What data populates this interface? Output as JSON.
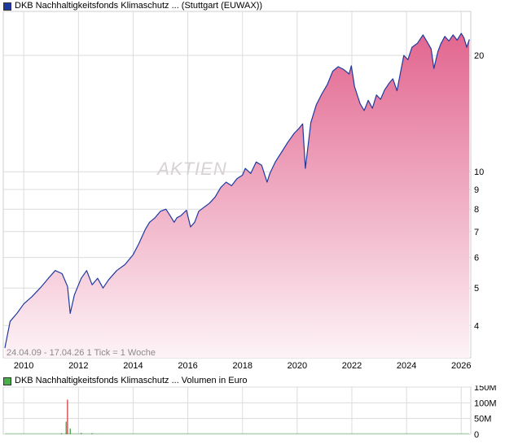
{
  "colors": {
    "price_line": "#1f3a9e",
    "area_top": "#e2668f",
    "area_bottom": "#fdf3f7",
    "grid": "#dcdcdc",
    "price_swatch": "#1f3a9e",
    "volume_swatch": "#48b048",
    "volume_bars": "#3a9a3a",
    "volume_spike": "#d03030",
    "watermark": "#d8d2d2"
  },
  "watermark": "AKTIEN",
  "chart_data": [
    {
      "type": "area",
      "legend": "DKB Nachhaltigkeitsfonds Klimaschutz ... (Stuttgart (EUWAX))",
      "info": "24.04.09 - 17.04.26   1 Tick = 1 Woche",
      "y_scale": "log",
      "ylim": [
        3.3,
        26
      ],
      "y_ticks": [
        4,
        5,
        6,
        7,
        8,
        9,
        10,
        20
      ],
      "x_ticks": [
        2010,
        2012,
        2014,
        2016,
        2018,
        2020,
        2022,
        2024,
        2026
      ],
      "xlim": [
        2009.25,
        2026.35
      ],
      "grid": true,
      "x": [
        2009.31,
        2009.5,
        2009.75,
        2010.0,
        2010.3,
        2010.6,
        2010.9,
        2011.15,
        2011.4,
        2011.6,
        2011.7,
        2011.85,
        2012.1,
        2012.3,
        2012.5,
        2012.7,
        2012.9,
        2013.1,
        2013.4,
        2013.7,
        2014.0,
        2014.2,
        2014.45,
        2014.6,
        2014.8,
        2015.0,
        2015.2,
        2015.35,
        2015.5,
        2015.6,
        2015.75,
        2015.95,
        2016.1,
        2016.25,
        2016.4,
        2016.6,
        2016.8,
        2017.0,
        2017.2,
        2017.4,
        2017.6,
        2017.8,
        2018.0,
        2018.1,
        2018.3,
        2018.5,
        2018.7,
        2018.9,
        2019.0,
        2019.2,
        2019.45,
        2019.65,
        2019.9,
        2020.05,
        2020.2,
        2020.3,
        2020.5,
        2020.7,
        2020.9,
        2021.1,
        2021.3,
        2021.5,
        2021.7,
        2021.9,
        2021.98,
        2022.1,
        2022.3,
        2022.45,
        2022.6,
        2022.75,
        2022.9,
        2023.05,
        2023.2,
        2023.35,
        2023.5,
        2023.65,
        2023.8,
        2023.9,
        2024.05,
        2024.2,
        2024.4,
        2024.6,
        2024.75,
        2024.9,
        2025.0,
        2025.15,
        2025.25,
        2025.4,
        2025.55,
        2025.7,
        2025.85,
        2026.0,
        2026.1,
        2026.2,
        2026.3
      ],
      "values": [
        3.5,
        4.1,
        4.3,
        4.55,
        4.75,
        5.0,
        5.3,
        5.55,
        5.45,
        5.05,
        4.3,
        4.8,
        5.3,
        5.55,
        5.1,
        5.3,
        5.0,
        5.25,
        5.55,
        5.75,
        6.1,
        6.5,
        7.1,
        7.4,
        7.6,
        7.9,
        8.0,
        7.7,
        7.4,
        7.6,
        7.7,
        7.95,
        7.2,
        7.4,
        7.9,
        8.1,
        8.3,
        8.6,
        9.1,
        9.4,
        9.2,
        9.6,
        9.8,
        10.2,
        9.9,
        10.6,
        10.4,
        9.4,
        9.9,
        10.6,
        11.3,
        11.9,
        12.6,
        12.9,
        13.3,
        10.2,
        13.4,
        14.9,
        15.9,
        16.8,
        18.2,
        18.7,
        18.4,
        17.9,
        18.8,
        16.6,
        15.0,
        14.4,
        15.3,
        14.6,
        15.8,
        15.4,
        16.3,
        16.9,
        17.4,
        16.2,
        18.4,
        20.0,
        19.5,
        21.0,
        21.5,
        22.6,
        21.7,
        20.8,
        18.5,
        20.5,
        21.4,
        22.4,
        21.8,
        22.6,
        21.9,
        22.8,
        22.2,
        21.0,
        22.0
      ]
    },
    {
      "type": "bar",
      "legend": "DKB Nachhaltigkeitsfonds Klimaschutz ... Volumen in Euro",
      "y_ticks": [
        0,
        50,
        100,
        150
      ],
      "y_tick_labels": [
        "0",
        "50M",
        "100M",
        "150M"
      ],
      "ylim": [
        0,
        150
      ],
      "xlim": [
        2009.25,
        2026.35
      ],
      "x": [
        2011.38,
        2011.55,
        2011.6,
        2011.7,
        2012.1,
        2012.5
      ],
      "values": [
        3,
        40,
        110,
        18,
        4,
        3
      ]
    }
  ]
}
